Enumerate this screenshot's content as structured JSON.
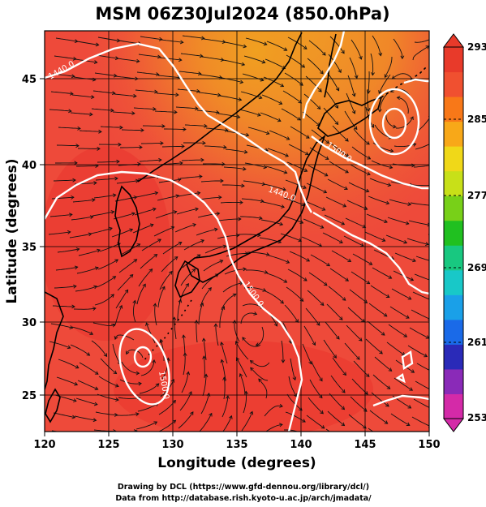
{
  "title": "MSM 06Z30Jul2024 (850.0hPa)",
  "x_axis": {
    "label": "Longitude (degrees)",
    "ticks": [
      "120",
      "125",
      "130",
      "135",
      "140",
      "145",
      "150"
    ]
  },
  "y_axis": {
    "label": "Latitude  (degrees)",
    "ticks": [
      "25",
      "30",
      "35",
      "40",
      "45"
    ]
  },
  "colorbar": {
    "ticks": [
      "293",
      "285",
      "277",
      "269",
      "261",
      "253"
    ],
    "colors": [
      "#d42aa8",
      "#8a2ab8",
      "#2a2ab8",
      "#1a6ae8",
      "#1aa0e8",
      "#18c8c8",
      "#18c880",
      "#20c020",
      "#78d018",
      "#c8e018",
      "#f0d818",
      "#f8a818",
      "#f87818",
      "#f05030",
      "#e83a2a"
    ]
  },
  "contour_labels": [
    "1440.0",
    "1440.0",
    "1500.0",
    "1500.0",
    "1500.0"
  ],
  "credits": {
    "line1": "Drawing by DCL (https://www.gfd-dennou.org/library/dcl/)",
    "line2": "Data from http://database.rish.kyoto-u.ac.jp/arch/jmadata/"
  }
}
